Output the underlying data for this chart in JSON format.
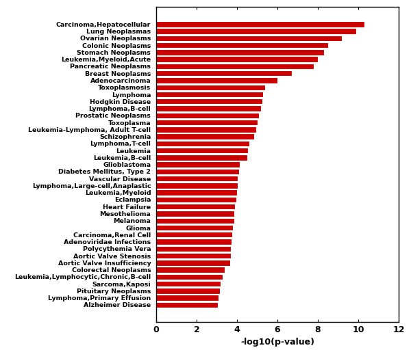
{
  "categories": [
    "Carcinoma,Hepatocellular",
    "Lung Neoplasmas",
    "Ovarian Neoplasms",
    "Colonic Neoplasms",
    "Stomach Neoplasms",
    "Leukemia,Myeloid,Acute",
    "Pancreatic Neoplasms",
    "Breast Neoplasms",
    "Adenocarcinoma",
    "Toxoplasmosis",
    "Lymphoma",
    "Hodgkin Disease",
    "Lymphoma,B-cell",
    "Prostatic Neoplasms",
    "Toxoplasma",
    "Leukemia-Lymphoma, Adult T-cell",
    "Schizophrenia",
    "Lymphoma,T-cell",
    "Leukemia",
    "Leukemia,B-cell",
    "Glioblastoma",
    "Diabetes Mellitus, Type 2",
    "Vascular Disease",
    "Lymphoma,Large-cell,Anaplastic",
    "Leukemia,Myeloid",
    "Eclampsia",
    "Heart Failure",
    "Mesothelioma",
    "Melanoma",
    "Glioma",
    "Carcinoma,Renal Cell",
    "Adenoviridae Infections",
    "Polycythemia Vera",
    "Aortic Valve Stenosis",
    "Aortic Valve Insufficiency",
    "Colorectal Neoplasms",
    "Leukemia,Lymphocytic,Chronic,B-cell",
    "Sarcoma,Kaposi",
    "Pituitary Neoplasms",
    "Lymphoma,Primary Effusion",
    "Alzheimer Disease"
  ],
  "values": [
    10.3,
    9.9,
    9.2,
    8.5,
    8.3,
    8.0,
    7.8,
    6.7,
    6.0,
    5.4,
    5.3,
    5.25,
    5.2,
    5.1,
    5.0,
    4.95,
    4.85,
    4.6,
    4.55,
    4.5,
    4.15,
    4.1,
    4.05,
    4.05,
    4.0,
    3.95,
    3.9,
    3.88,
    3.85,
    3.8,
    3.75,
    3.72,
    3.7,
    3.68,
    3.65,
    3.4,
    3.3,
    3.2,
    3.15,
    3.1,
    3.05
  ],
  "bar_color": "#cc0000",
  "bar_edge_color": "white",
  "xlabel": "-log10(p-value)",
  "xlim": [
    0,
    12
  ],
  "xticks": [
    0,
    2,
    4,
    6,
    8,
    10,
    12
  ],
  "label_fontsize": 6.8,
  "axis_fontsize": 9,
  "figure_width": 6.0,
  "figure_height": 5.12,
  "dpi": 100
}
